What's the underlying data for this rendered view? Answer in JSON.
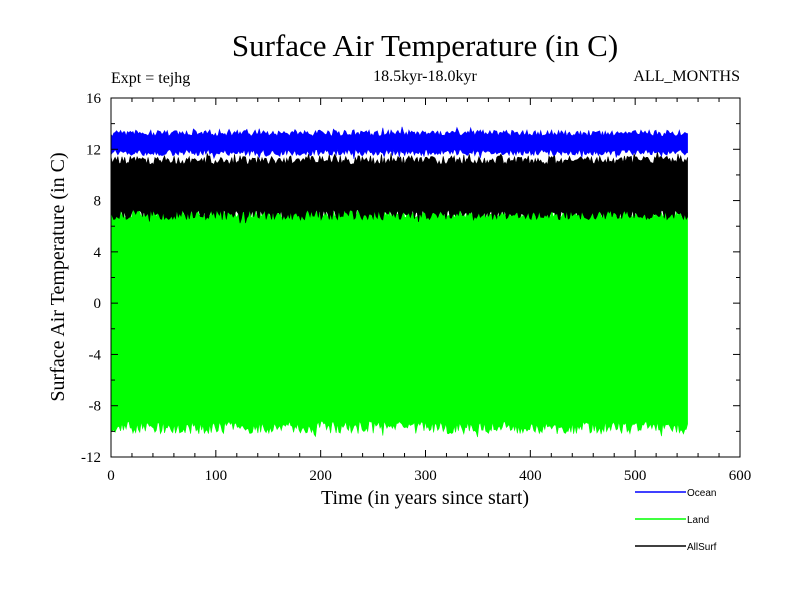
{
  "chart_data": {
    "type": "area",
    "title": "Surface Air Temperature (in C)",
    "subtitle": "18.5kyr-18.0kyr",
    "experiment": "Expt = tejhg",
    "months": "ALL_MONTHS",
    "xlabel": "Time (in years since start)",
    "ylabel": "Surface Air Temperature (in C)",
    "xlim": [
      0,
      600
    ],
    "ylim": [
      -12,
      16
    ],
    "xticks": [
      0,
      100,
      200,
      300,
      400,
      500,
      600
    ],
    "yticks": [
      -12,
      -8,
      -4,
      0,
      4,
      8,
      12,
      16
    ],
    "x_range": [
      0,
      550
    ],
    "series": [
      {
        "name": "Ocean",
        "color": "#0000ff",
        "lower_band": [
          11.5,
          12.0
        ],
        "upper_band": [
          13.0,
          13.5
        ],
        "mean": 12.4
      },
      {
        "name": "Land",
        "color": "#00ff00",
        "lower_band": [
          -10.2,
          -9.2
        ],
        "upper_band": [
          6.6,
          7.5
        ],
        "mean": -1.5
      },
      {
        "name": "AllSurf",
        "color": "#000000",
        "lower_band": [
          6.5,
          7.3
        ],
        "upper_band": [
          10.8,
          11.5
        ],
        "mean": 9.0
      }
    ],
    "legend_position": "bottom-right",
    "grid": false
  }
}
